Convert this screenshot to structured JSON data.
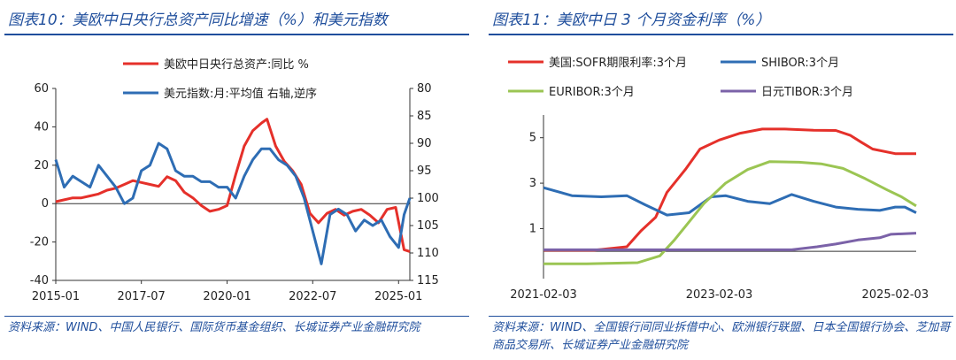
{
  "left": {
    "title": "图表10：美欧中日央行总资产同比增速（%）和美元指数",
    "source": "资料来源：WIND、中国人民银行、国际货币基金组织、长城证券产业金融研究院",
    "chart_data": {
      "type": "line",
      "x_ticks": [
        "2015-01",
        "2017-07",
        "2020-01",
        "2022-07",
        "2025-01"
      ],
      "x_range": [
        "2015-01",
        "2025-05"
      ],
      "y_left": {
        "ticks": [
          60,
          40,
          20,
          0,
          -20,
          -40
        ],
        "range": [
          -40,
          60
        ]
      },
      "y_right": {
        "ticks": [
          80,
          85,
          90,
          95,
          100,
          105,
          110,
          115
        ],
        "range": [
          80,
          115
        ],
        "inverted": true
      },
      "series": [
        {
          "name": "美欧中日央行总资产:同比 %",
          "color": "#e5302a",
          "axis": "left",
          "points": [
            [
              "2015-01",
              1
            ],
            [
              "2015-04",
              2
            ],
            [
              "2015-07",
              3
            ],
            [
              "2015-10",
              3
            ],
            [
              "2016-01",
              4
            ],
            [
              "2016-04",
              5
            ],
            [
              "2016-07",
              7
            ],
            [
              "2016-10",
              8
            ],
            [
              "2017-01",
              10
            ],
            [
              "2017-04",
              12
            ],
            [
              "2017-07",
              11
            ],
            [
              "2017-10",
              10
            ],
            [
              "2018-01",
              9
            ],
            [
              "2018-04",
              14
            ],
            [
              "2018-07",
              12
            ],
            [
              "2018-10",
              6
            ],
            [
              "2019-01",
              3
            ],
            [
              "2019-04",
              -1
            ],
            [
              "2019-07",
              -4
            ],
            [
              "2019-10",
              -3
            ],
            [
              "2020-01",
              -1
            ],
            [
              "2020-04",
              15
            ],
            [
              "2020-07",
              30
            ],
            [
              "2020-10",
              38
            ],
            [
              "2021-01",
              42
            ],
            [
              "2021-03",
              44
            ],
            [
              "2021-06",
              30
            ],
            [
              "2021-09",
              22
            ],
            [
              "2021-12",
              17
            ],
            [
              "2022-03",
              10
            ],
            [
              "2022-06",
              -5
            ],
            [
              "2022-09",
              -10
            ],
            [
              "2022-12",
              -5
            ],
            [
              "2023-03",
              -3
            ],
            [
              "2023-06",
              -6
            ],
            [
              "2023-09",
              -4
            ],
            [
              "2023-12",
              -3
            ],
            [
              "2024-03",
              -6
            ],
            [
              "2024-06",
              -10
            ],
            [
              "2024-09",
              -3
            ],
            [
              "2024-12",
              -2
            ],
            [
              "2025-03",
              -24
            ],
            [
              "2025-05",
              -25
            ]
          ]
        },
        {
          "name": "美元指数:月:平均值 右轴,逆序",
          "color": "#2e6db4",
          "axis": "right",
          "points": [
            [
              "2015-01",
              93
            ],
            [
              "2015-04",
              98
            ],
            [
              "2015-07",
              96
            ],
            [
              "2015-10",
              97
            ],
            [
              "2016-01",
              98
            ],
            [
              "2016-04",
              94
            ],
            [
              "2016-07",
              96
            ],
            [
              "2016-10",
              98
            ],
            [
              "2017-01",
              101
            ],
            [
              "2017-04",
              100
            ],
            [
              "2017-07",
              95
            ],
            [
              "2017-10",
              94
            ],
            [
              "2018-01",
              90
            ],
            [
              "2018-04",
              91
            ],
            [
              "2018-07",
              95
            ],
            [
              "2018-10",
              96
            ],
            [
              "2019-01",
              96
            ],
            [
              "2019-04",
              97
            ],
            [
              "2019-07",
              97
            ],
            [
              "2019-10",
              98
            ],
            [
              "2020-01",
              98
            ],
            [
              "2020-04",
              100
            ],
            [
              "2020-07",
              96
            ],
            [
              "2020-10",
              93
            ],
            [
              "2021-01",
              91
            ],
            [
              "2021-04",
              91
            ],
            [
              "2021-07",
              93
            ],
            [
              "2021-10",
              94
            ],
            [
              "2022-01",
              96
            ],
            [
              "2022-04",
              100
            ],
            [
              "2022-07",
              106
            ],
            [
              "2022-10",
              112
            ],
            [
              "2023-01",
              103
            ],
            [
              "2023-04",
              102
            ],
            [
              "2023-07",
              103
            ],
            [
              "2023-10",
              106
            ],
            [
              "2024-01",
              104
            ],
            [
              "2024-04",
              105
            ],
            [
              "2024-07",
              104
            ],
            [
              "2024-10",
              107
            ],
            [
              "2025-01",
              109
            ],
            [
              "2025-03",
              103
            ],
            [
              "2025-05",
              100
            ]
          ]
        }
      ]
    }
  },
  "right": {
    "title": "图表11：美欧中日 3 个月资金利率（%）",
    "source": "资料来源：WIND、全国银行间同业拆借中心、欧洲银行联盟、日本全国银行协会、芝加哥商品交易所、长城证券产业金融研究院",
    "chart_data": {
      "type": "line",
      "x_ticks": [
        "2021-02-03",
        "2023-02-03",
        "2025-02-03"
      ],
      "x_range": [
        "2021-02-03",
        "2025-05-01"
      ],
      "y": {
        "ticks": [
          5,
          3,
          1
        ],
        "range": [
          -1.2,
          6
        ]
      },
      "series": [
        {
          "name": "美国:SOFR期限利率:3个月",
          "color": "#e5302a",
          "points": [
            [
              "2021-02-03",
              0.05
            ],
            [
              "2021-09-01",
              0.05
            ],
            [
              "2022-01-15",
              0.2
            ],
            [
              "2022-03-15",
              0.9
            ],
            [
              "2022-05-15",
              1.5
            ],
            [
              "2022-07-01",
              2.6
            ],
            [
              "2022-09-15",
              3.6
            ],
            [
              "2022-11-15",
              4.5
            ],
            [
              "2023-02-03",
              4.9
            ],
            [
              "2023-05-01",
              5.2
            ],
            [
              "2023-08-01",
              5.38
            ],
            [
              "2023-11-01",
              5.38
            ],
            [
              "2024-03-01",
              5.33
            ],
            [
              "2024-06-01",
              5.32
            ],
            [
              "2024-08-01",
              5.1
            ],
            [
              "2024-09-15",
              4.8
            ],
            [
              "2024-11-01",
              4.5
            ],
            [
              "2025-02-03",
              4.3
            ],
            [
              "2025-05-01",
              4.3
            ]
          ]
        },
        {
          "name": "SHIBOR:3个月",
          "color": "#2e6db4",
          "points": [
            [
              "2021-02-03",
              2.8
            ],
            [
              "2021-06-01",
              2.45
            ],
            [
              "2021-10-01",
              2.4
            ],
            [
              "2022-01-15",
              2.45
            ],
            [
              "2022-04-01",
              2.05
            ],
            [
              "2022-07-01",
              1.6
            ],
            [
              "2022-10-01",
              1.7
            ],
            [
              "2023-01-01",
              2.4
            ],
            [
              "2023-03-01",
              2.45
            ],
            [
              "2023-06-01",
              2.2
            ],
            [
              "2023-09-01",
              2.1
            ],
            [
              "2023-12-01",
              2.5
            ],
            [
              "2024-03-01",
              2.2
            ],
            [
              "2024-06-01",
              1.95
            ],
            [
              "2024-09-01",
              1.85
            ],
            [
              "2024-12-01",
              1.8
            ],
            [
              "2025-02-03",
              1.95
            ],
            [
              "2025-03-15",
              1.95
            ],
            [
              "2025-05-01",
              1.7
            ]
          ]
        },
        {
          "name": "EURIBOR:3个月",
          "color": "#9bc553",
          "points": [
            [
              "2021-02-03",
              -0.55
            ],
            [
              "2021-08-01",
              -0.55
            ],
            [
              "2022-03-01",
              -0.5
            ],
            [
              "2022-06-01",
              -0.2
            ],
            [
              "2022-08-01",
              0.5
            ],
            [
              "2022-10-01",
              1.3
            ],
            [
              "2022-12-01",
              2.1
            ],
            [
              "2023-03-01",
              3.0
            ],
            [
              "2023-06-01",
              3.6
            ],
            [
              "2023-09-01",
              3.95
            ],
            [
              "2024-01-01",
              3.92
            ],
            [
              "2024-04-01",
              3.85
            ],
            [
              "2024-07-01",
              3.65
            ],
            [
              "2024-10-01",
              3.2
            ],
            [
              "2025-01-01",
              2.7
            ],
            [
              "2025-03-01",
              2.4
            ],
            [
              "2025-05-01",
              2.0
            ]
          ]
        },
        {
          "name": "日元TIBOR:3个月",
          "color": "#7b62a8",
          "points": [
            [
              "2021-02-03",
              0.07
            ],
            [
              "2023-12-01",
              0.07
            ],
            [
              "2024-03-15",
              0.2
            ],
            [
              "2024-06-01",
              0.32
            ],
            [
              "2024-09-01",
              0.5
            ],
            [
              "2024-12-01",
              0.6
            ],
            [
              "2025-01-15",
              0.75
            ],
            [
              "2025-05-01",
              0.8
            ]
          ]
        }
      ]
    }
  }
}
